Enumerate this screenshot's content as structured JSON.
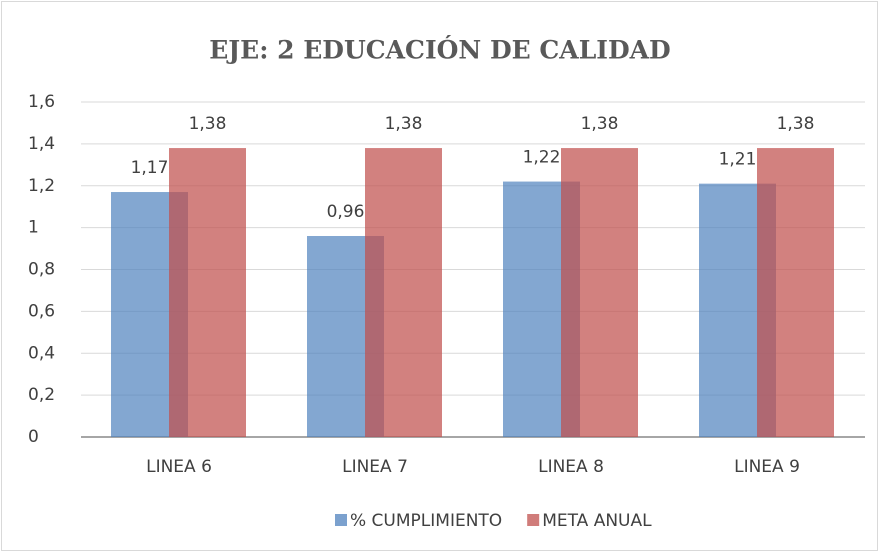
{
  "chart_data": {
    "type": "bar",
    "title": "EJE: 2 EDUCACIÓN DE CALIDAD",
    "categories": [
      "LINEA 6",
      "LINEA 7",
      "LINEA 8",
      "LINEA 9"
    ],
    "series": [
      {
        "name": "% CUMPLIMIENTO",
        "color": "#4f81bd",
        "values": [
          1.17,
          0.96,
          1.22,
          1.21
        ],
        "value_labels": [
          "1,17",
          "0,96",
          "1,22",
          "1,21"
        ]
      },
      {
        "name": "META ANUAL",
        "color": "#c0504d",
        "values": [
          1.38,
          1.38,
          1.38,
          1.38
        ],
        "value_labels": [
          "1,38",
          "1,38",
          "1,38",
          "1,38"
        ]
      }
    ],
    "ylim": [
      0,
      1.6
    ],
    "yticks": [
      0,
      {
        "value": 0.2,
        "label": "0,2"
      },
      {
        "value": 0.4,
        "label": "0,4"
      },
      {
        "value": 0.6,
        "label": "0,6"
      },
      {
        "value": 0.8,
        "label": "0,8"
      },
      1,
      {
        "value": 1.2,
        "label": "1,2"
      },
      {
        "value": 1.4,
        "label": "1,4"
      },
      {
        "value": 1.6,
        "label": "1,6"
      }
    ],
    "grid": true,
    "legend": "bottom"
  }
}
